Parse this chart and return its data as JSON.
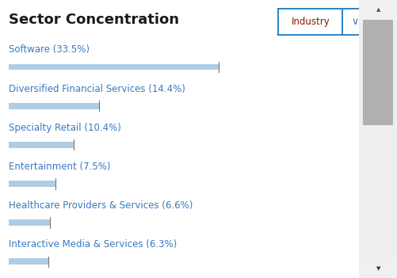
{
  "title": "Sector Concentration",
  "button_label": "Industry",
  "categories": [
    "Software (33.5%)",
    "Diversified Financial Services (14.4%)",
    "Specialty Retail (10.4%)",
    "Entertainment (7.5%)",
    "Healthcare Providers & Services (6.6%)",
    "Interactive Media & Services (6.3%)"
  ],
  "values": [
    33.5,
    14.4,
    10.4,
    7.5,
    6.6,
    6.3
  ],
  "max_value": 33.5,
  "bar_color": "#aecde5",
  "text_color": "#3a7abf",
  "title_color": "#1a1a1a",
  "button_border_color": "#1a7abf",
  "button_text_color": "#8b1a00",
  "button_chevron_color": "#3a7abf",
  "background_color": "#ffffff",
  "scrollbar_thumb_color": "#b0b0b0",
  "scrollbar_bg_color": "#eeeeee",
  "title_fontsize": 13,
  "label_fontsize": 8.5
}
